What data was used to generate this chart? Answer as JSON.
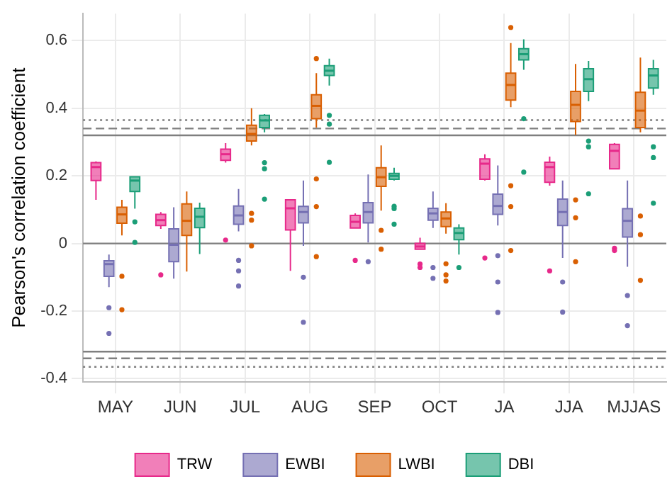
{
  "chart_data": {
    "type": "box",
    "ylabel": "Pearson's correlation coefficient",
    "categories": [
      "MAY",
      "JUN",
      "JUL",
      "AUG",
      "SEP",
      "OCT",
      "JA",
      "JJA",
      "MJJAS"
    ],
    "ylim": [
      -0.41,
      0.68
    ],
    "yticks": [
      -0.4,
      -0.2,
      0,
      0.2,
      0.4,
      0.6
    ],
    "grid": true,
    "legend": "bottom",
    "ref_lines": [
      {
        "axis": "y",
        "value": 0,
        "line_style": "solid",
        "color": "#7f7f7f"
      },
      {
        "axis": "y",
        "value": 0.32,
        "line_style": "solid",
        "color": "#7f7f7f"
      },
      {
        "axis": "y",
        "value": -0.32,
        "line_style": "solid",
        "color": "#7f7f7f"
      },
      {
        "axis": "y",
        "value": 0.34,
        "line_style": "dashed",
        "color": "#7f7f7f"
      },
      {
        "axis": "y",
        "value": -0.34,
        "line_style": "dashed",
        "color": "#7f7f7f"
      },
      {
        "axis": "y",
        "value": 0.365,
        "line_style": "dotted",
        "color": "#7f7f7f"
      },
      {
        "axis": "y",
        "value": -0.365,
        "line_style": "dotted",
        "color": "#7f7f7f"
      }
    ],
    "series": [
      {
        "name": "TRW",
        "color": "#e7298a",
        "boxes": [
          {
            "low": 0.129,
            "q1": 0.186,
            "median": 0.226,
            "q3": 0.239,
            "high": 0.243
          },
          {
            "low": 0.043,
            "q1": 0.053,
            "median": 0.069,
            "q3": 0.086,
            "high": 0.093,
            "outliers": [
              -0.093
            ]
          },
          {
            "low": 0.239,
            "q1": 0.246,
            "median": 0.264,
            "q3": 0.279,
            "high": 0.297,
            "outliers": [
              0.01
            ]
          },
          {
            "low": -0.081,
            "q1": 0.04,
            "median": 0.104,
            "q3": 0.129,
            "high": 0.129
          },
          {
            "low": 0.046,
            "q1": 0.046,
            "median": 0.064,
            "q3": 0.083,
            "high": 0.089,
            "outliers": [
              -0.05
            ]
          },
          {
            "low": -0.017,
            "q1": -0.017,
            "median": -0.009,
            "q3": 0,
            "high": 0.017,
            "outliers": [
              -0.061,
              -0.071
            ]
          },
          {
            "low": 0.186,
            "q1": 0.19,
            "median": 0.236,
            "q3": 0.25,
            "high": 0.264,
            "outliers": [
              -0.043
            ]
          },
          {
            "low": 0.171,
            "q1": 0.181,
            "median": 0.226,
            "q3": 0.24,
            "high": 0.257,
            "outliers": [
              -0.081
            ]
          },
          {
            "low": 0.221,
            "q1": 0.221,
            "median": 0.274,
            "q3": 0.293,
            "high": 0.297,
            "outliers": [
              -0.014,
              -0.021
            ]
          }
        ]
      },
      {
        "name": "EWBI",
        "color": "#7570b3",
        "boxes": [
          {
            "low": -0.129,
            "q1": -0.097,
            "median": -0.061,
            "q3": -0.051,
            "high": -0.033,
            "outliers": [
              -0.19,
              -0.266
            ]
          },
          {
            "low": -0.104,
            "q1": -0.054,
            "median": -0.004,
            "q3": 0.043,
            "high": 0.107
          },
          {
            "low": 0.036,
            "q1": 0.057,
            "median": 0.083,
            "q3": 0.111,
            "high": 0.161,
            "outliers": [
              -0.05,
              -0.081,
              -0.126
            ]
          },
          {
            "low": -0.007,
            "q1": 0.061,
            "median": 0.093,
            "q3": 0.11,
            "high": 0.186,
            "outliers": [
              -0.1,
              -0.233
            ]
          },
          {
            "low": 0.003,
            "q1": 0.061,
            "median": 0.093,
            "q3": 0.121,
            "high": 0.204,
            "outliers": [
              -0.054
            ]
          },
          {
            "low": 0.046,
            "q1": 0.069,
            "median": 0.089,
            "q3": 0.104,
            "high": 0.154,
            "outliers": [
              -0.071,
              -0.103
            ]
          },
          {
            "low": 0.053,
            "q1": 0.086,
            "median": 0.111,
            "q3": 0.146,
            "high": 0.231,
            "outliers": [
              -0.036,
              -0.114,
              -0.204
            ]
          },
          {
            "low": -0.043,
            "q1": 0.053,
            "median": 0.093,
            "q3": 0.131,
            "high": 0.186,
            "outliers": [
              -0.114,
              -0.203
            ]
          },
          {
            "low": -0.069,
            "q1": 0.019,
            "median": 0.067,
            "q3": 0.103,
            "high": 0.186,
            "outliers": [
              -0.154,
              -0.243
            ]
          }
        ]
      },
      {
        "name": "LWBI",
        "color": "#d95f02",
        "boxes": [
          {
            "low": 0.024,
            "q1": 0.06,
            "median": 0.086,
            "q3": 0.107,
            "high": 0.129,
            "outliers": [
              -0.097,
              -0.196
            ]
          },
          {
            "low": -0.083,
            "q1": 0.024,
            "median": 0.067,
            "q3": 0.117,
            "high": 0.154
          },
          {
            "low": 0.29,
            "q1": 0.303,
            "median": 0.324,
            "q3": 0.35,
            "high": 0.4,
            "outliers": [
              0.089,
              0.069,
              -0.007
            ]
          },
          {
            "low": 0.343,
            "q1": 0.369,
            "median": 0.407,
            "q3": 0.44,
            "high": 0.504,
            "outliers": [
              0.547,
              0.191,
              0.109,
              -0.039
            ]
          },
          {
            "low": 0.097,
            "q1": 0.169,
            "median": 0.196,
            "q3": 0.224,
            "high": 0.29,
            "outliers": [
              0.039,
              -0.017
            ]
          },
          {
            "low": 0.029,
            "q1": 0.05,
            "median": 0.074,
            "q3": 0.093,
            "high": 0.119,
            "outliers": [
              -0.06,
              -0.093,
              -0.111
            ]
          },
          {
            "low": 0.403,
            "q1": 0.424,
            "median": 0.469,
            "q3": 0.504,
            "high": 0.593,
            "outliers": [
              0.639,
              0.171,
              0.109,
              -0.021
            ]
          },
          {
            "low": 0.321,
            "q1": 0.361,
            "median": 0.41,
            "q3": 0.45,
            "high": 0.531,
            "outliers": [
              0.129,
              0.076,
              -0.054
            ]
          },
          {
            "low": 0.329,
            "q1": 0.343,
            "median": 0.393,
            "q3": 0.447,
            "high": 0.55,
            "outliers": [
              0.081,
              0.026,
              -0.109
            ]
          }
        ]
      },
      {
        "name": "DBI",
        "color": "#1b9e77",
        "boxes": [
          {
            "low": 0.103,
            "q1": 0.154,
            "median": 0.186,
            "q3": 0.197,
            "high": 0.197,
            "outliers": [
              0.064,
              0.003
            ]
          },
          {
            "low": -0.031,
            "q1": 0.047,
            "median": 0.079,
            "q3": 0.104,
            "high": 0.121
          },
          {
            "low": 0.329,
            "q1": 0.343,
            "median": 0.364,
            "q3": 0.379,
            "high": 0.383,
            "outliers": [
              0.239,
              0.221,
              0.131
            ]
          },
          {
            "low": 0.467,
            "q1": 0.497,
            "median": 0.511,
            "q3": 0.526,
            "high": 0.547,
            "outliers": [
              0.379,
              0.353,
              0.24
            ]
          },
          {
            "low": 0.186,
            "q1": 0.19,
            "median": 0.2,
            "q3": 0.207,
            "high": 0.224,
            "outliers": [
              0.11,
              0.103,
              0.057
            ]
          },
          {
            "low": -0.033,
            "q1": 0.011,
            "median": 0.031,
            "q3": 0.046,
            "high": 0.057,
            "outliers": [
              -0.071
            ]
          },
          {
            "low": 0.514,
            "q1": 0.543,
            "median": 0.56,
            "q3": 0.576,
            "high": 0.604,
            "outliers": [
              0.369,
              0.211
            ]
          },
          {
            "low": 0.421,
            "q1": 0.45,
            "median": 0.486,
            "q3": 0.517,
            "high": 0.54,
            "outliers": [
              0.303,
              0.286,
              0.147
            ]
          },
          {
            "low": 0.44,
            "q1": 0.46,
            "median": 0.497,
            "q3": 0.517,
            "high": 0.543,
            "outliers": [
              0.286,
              0.254,
              0.119
            ]
          }
        ]
      }
    ]
  }
}
